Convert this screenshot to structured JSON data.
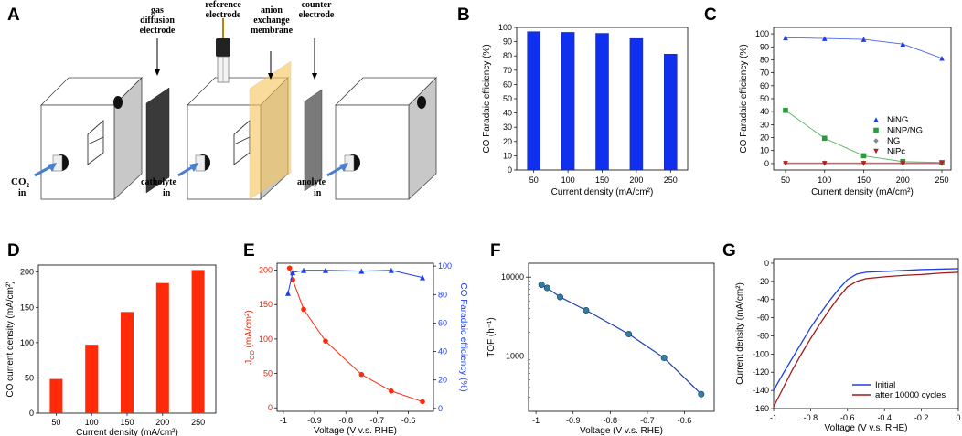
{
  "panel_letters": [
    "A",
    "B",
    "C",
    "D",
    "E",
    "F",
    "G"
  ],
  "diagram": {
    "labels": {
      "gas_diffusion": [
        "gas",
        "diffusion",
        "electrode"
      ],
      "reference": [
        "reference",
        "electrode"
      ],
      "anion": [
        "anion",
        "exchange",
        "membrane"
      ],
      "counter": [
        "counter",
        "electrode"
      ],
      "co2": "CO",
      "co2_sub": "2",
      "co2_in": "in",
      "catholyte": "catholyte",
      "catholyte_in": "in",
      "anolyte": "anolyte",
      "anolyte_in": "in"
    },
    "colors": {
      "membrane": "#f6c55a",
      "arrow": "#4a7fd0",
      "body": "#ffffff",
      "side": "#c8c8c8"
    }
  },
  "chart_data": [
    {
      "id": "B",
      "type": "bar",
      "categories": [
        "50",
        "100",
        "150",
        "200",
        "250"
      ],
      "values": [
        97,
        96.5,
        95.8,
        92.2,
        81.2
      ],
      "ylim": [
        0,
        100
      ],
      "yticks": [
        "0",
        "10",
        "20",
        "30",
        "40",
        "50",
        "60",
        "70",
        "80",
        "90",
        "100"
      ],
      "xlabel": "Current density (mA/cm²)",
      "ylabel": "CO Faradaic efficiency (%)",
      "color": "#1030f0"
    },
    {
      "id": "C",
      "type": "line",
      "x": [
        50,
        100,
        150,
        200,
        250
      ],
      "xticks": [
        "50",
        "100",
        "150",
        "200",
        "250"
      ],
      "ylim": [
        -5,
        105
      ],
      "yticks": [
        "0",
        "10",
        "20",
        "30",
        "40",
        "50",
        "60",
        "70",
        "80",
        "90",
        "100"
      ],
      "xlabel": "Current density (mA/cm²)",
      "ylabel": "CO Faradaic efficiency (%)",
      "legend_position": "right",
      "series": [
        {
          "name": "NiNG",
          "values": [
            97,
            96.5,
            95.8,
            92.2,
            81.2
          ],
          "color": "#1e3ee6",
          "marker": "triangle"
        },
        {
          "name": "NiNP/NG",
          "values": [
            41,
            19.5,
            6,
            1.5,
            0.8
          ],
          "color": "#2a9a3a",
          "marker": "square"
        },
        {
          "name": "NG",
          "values": [
            0.5,
            0.5,
            0.5,
            0.5,
            0.5
          ],
          "color": "#888888",
          "marker": "diamond"
        },
        {
          "name": "NiPc",
          "values": [
            0,
            0,
            0,
            0,
            0
          ],
          "color": "#b22222",
          "marker": "triangle-down"
        }
      ]
    },
    {
      "id": "D",
      "type": "bar",
      "categories": [
        "50",
        "100",
        "150",
        "200",
        "250"
      ],
      "values": [
        48.5,
        97,
        143.5,
        184.5,
        203
      ],
      "ylim": [
        0,
        210
      ],
      "yticks": [
        "0",
        "50",
        "100",
        "150",
        "200"
      ],
      "xlabel": "Current density (mA/cm²)",
      "ylabel": "CO current density (mA/cm²)",
      "color": "#ff2a0a"
    },
    {
      "id": "E",
      "type": "line",
      "x": [
        -0.98,
        -0.97,
        -0.935,
        -0.865,
        -0.75,
        -0.655,
        -0.555
      ],
      "xlim": [
        -1.02,
        -0.52
      ],
      "xticks": [
        "-1",
        "-0.9",
        "-0.8",
        "-0.7",
        "-0.6"
      ],
      "xlabel": "Voltage (V v.s. RHE)",
      "ylabel_left": "J",
      "ylabel_left_sub": "CO",
      "ylabel_left_unit": " (mA/cm²)",
      "ylabel_right": "CO Faradaic efficiency (%)",
      "ylim_left": [
        -5,
        210
      ],
      "ylim_right": [
        -2,
        102
      ],
      "yticks_left": [
        "0",
        "50",
        "100",
        "150",
        "200"
      ],
      "yticks_right": [
        "0",
        "20",
        "40",
        "60",
        "80",
        "100"
      ],
      "series": [
        {
          "name": "Jco",
          "axis": "left",
          "values": [
            203,
            186,
            143,
            97,
            48.5,
            24.5,
            9
          ],
          "color": "#ff2a0a",
          "marker": "circle"
        },
        {
          "name": "FE",
          "axis": "right",
          "x": [
            -0.985,
            -0.97,
            -0.935,
            -0.865,
            -0.75,
            -0.655,
            -0.555
          ],
          "values": [
            81,
            95.5,
            97,
            97,
            96.5,
            97,
            92
          ],
          "color": "#1e3ee6",
          "marker": "triangle"
        }
      ]
    },
    {
      "id": "F",
      "type": "line",
      "x": [
        -0.985,
        -0.97,
        -0.935,
        -0.865,
        -0.75,
        -0.655,
        -0.555
      ],
      "values": [
        8000,
        7300,
        5600,
        3800,
        1900,
        950,
        330
      ],
      "log_y": true,
      "ylim": [
        200,
        15000
      ],
      "yticks": [
        "1000",
        "10000"
      ],
      "xticks": [
        "-1",
        "-0.9",
        "-0.8",
        "-0.7",
        "-0.6"
      ],
      "xlim": [
        -1.02,
        -0.52
      ],
      "xlabel": "Voltage (V v.s. RHE)",
      "ylabel": "TOF (h⁻¹)",
      "color": "#1f3fb4",
      "marker_color": "#2f7f9e"
    },
    {
      "id": "G",
      "type": "line",
      "xlim": [
        -1,
        0
      ],
      "ylim": [
        -160,
        5
      ],
      "xticks": [
        "-1",
        "-0.8",
        "-0.6",
        "-0.4",
        "-0.2",
        "0"
      ],
      "yticks": [
        "0",
        "-20",
        "-40",
        "-60",
        "-80",
        "-100",
        "-120",
        "-140",
        "-160"
      ],
      "xlabel": "Voltage (V v.s. RHE)",
      "ylabel": "Current density (mA/cm²)",
      "legend_position": "bottom-right",
      "series": [
        {
          "name": "Initial",
          "color": "#1e3ee6",
          "x": [
            -1,
            -0.95,
            -0.9,
            -0.85,
            -0.8,
            -0.75,
            -0.7,
            -0.65,
            -0.6,
            -0.55,
            -0.5,
            -0.45,
            -0.4,
            -0.3,
            -0.2,
            -0.1,
            0
          ],
          "values": [
            -140,
            -122,
            -105,
            -88,
            -71,
            -56,
            -42,
            -29,
            -18,
            -12,
            -10,
            -9.5,
            -9,
            -8,
            -7,
            -6.5,
            -6
          ]
        },
        {
          "name": "after 10000 cycles",
          "color": "#a01818",
          "x": [
            -1,
            -0.95,
            -0.9,
            -0.85,
            -0.8,
            -0.75,
            -0.7,
            -0.65,
            -0.6,
            -0.55,
            -0.5,
            -0.45,
            -0.4,
            -0.3,
            -0.2,
            -0.1,
            0
          ],
          "values": [
            -158,
            -138,
            -118,
            -100,
            -83,
            -67,
            -52,
            -38,
            -26,
            -20,
            -17,
            -16,
            -15,
            -13.5,
            -12.5,
            -11,
            -10
          ]
        }
      ]
    }
  ]
}
